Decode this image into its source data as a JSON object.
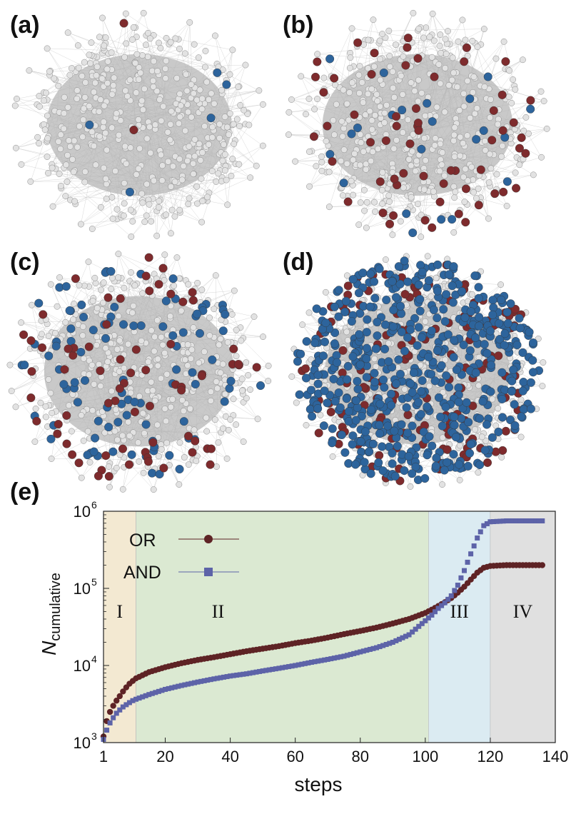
{
  "panels": {
    "a": "(a)",
    "b": "(b)",
    "c": "(c)",
    "d": "(d)",
    "e": "(e)"
  },
  "colors": {
    "node_default": "#e2e2e2",
    "node_red": "#7e2b2d",
    "node_blue": "#2d649c",
    "edge": "#b7b7b7",
    "or_series": "#5e2325",
    "and_series": "#5d63a8",
    "region_I": "#f3e9d2",
    "region_II": "#dbe9d2",
    "region_III": "#dbebf2",
    "region_IV": "#e0e0e0"
  },
  "networks": [
    {
      "id": "a",
      "blue_count": 5,
      "red_count": 2
    },
    {
      "id": "b",
      "blue_count": 22,
      "red_count": 60
    },
    {
      "id": "c",
      "blue_count": 95,
      "red_count": 70
    },
    {
      "id": "d",
      "blue_count": 560,
      "red_count": 150
    }
  ],
  "chart_data": {
    "type": "scatter",
    "xlabel": "steps",
    "ylabel": "N",
    "ylabel_sub": "cumulative",
    "y_scale": "log",
    "xlim": [
      1,
      140
    ],
    "ylim": [
      1000,
      1000000
    ],
    "x_ticks": [
      "1",
      "20",
      "40",
      "60",
      "80",
      "100",
      "120",
      "140"
    ],
    "x_tick_values": [
      1,
      20,
      40,
      60,
      80,
      100,
      120,
      140
    ],
    "y_ticks": [
      {
        "base": "10",
        "exp": "3",
        "value": 1000
      },
      {
        "base": "10",
        "exp": "4",
        "value": 10000
      },
      {
        "base": "10",
        "exp": "5",
        "value": 100000
      },
      {
        "base": "10",
        "exp": "6",
        "value": 1000000
      }
    ],
    "regions": [
      {
        "label": "I",
        "from": 1,
        "to": 11
      },
      {
        "label": "II",
        "from": 11,
        "to": 101
      },
      {
        "label": "III",
        "from": 101,
        "to": 120
      },
      {
        "label": "IV",
        "from": 120,
        "to": 140
      }
    ],
    "legend_position": "top-left",
    "series": [
      {
        "name": "OR",
        "marker": "circle",
        "points": [
          [
            1,
            1200
          ],
          [
            2,
            1900
          ],
          [
            3,
            2500
          ],
          [
            4,
            3000
          ],
          [
            5,
            3500
          ],
          [
            6,
            4000
          ],
          [
            7,
            4600
          ],
          [
            8,
            5200
          ],
          [
            9,
            5800
          ],
          [
            10,
            6300
          ],
          [
            11,
            6800
          ],
          [
            15,
            8200
          ],
          [
            20,
            9500
          ],
          [
            25,
            10700
          ],
          [
            30,
            11800
          ],
          [
            35,
            12800
          ],
          [
            40,
            14000
          ],
          [
            45,
            15300
          ],
          [
            50,
            16500
          ],
          [
            55,
            17800
          ],
          [
            60,
            19500
          ],
          [
            65,
            21000
          ],
          [
            70,
            23000
          ],
          [
            75,
            25500
          ],
          [
            80,
            28000
          ],
          [
            85,
            31000
          ],
          [
            90,
            35000
          ],
          [
            95,
            40000
          ],
          [
            100,
            48000
          ],
          [
            102,
            53000
          ],
          [
            104,
            59000
          ],
          [
            106,
            66000
          ],
          [
            108,
            75000
          ],
          [
            110,
            88000
          ],
          [
            112,
            105000
          ],
          [
            114,
            130000
          ],
          [
            116,
            160000
          ],
          [
            118,
            185000
          ],
          [
            120,
            195000
          ],
          [
            125,
            200000
          ],
          [
            130,
            200000
          ],
          [
            136,
            200000
          ]
        ]
      },
      {
        "name": "AND",
        "marker": "square",
        "points": [
          [
            1,
            1100
          ],
          [
            2,
            1450
          ],
          [
            3,
            1800
          ],
          [
            4,
            2100
          ],
          [
            5,
            2400
          ],
          [
            6,
            2650
          ],
          [
            7,
            2900
          ],
          [
            8,
            3100
          ],
          [
            9,
            3300
          ],
          [
            10,
            3500
          ],
          [
            11,
            3650
          ],
          [
            15,
            4200
          ],
          [
            20,
            4900
          ],
          [
            25,
            5500
          ],
          [
            30,
            6100
          ],
          [
            35,
            6700
          ],
          [
            40,
            7300
          ],
          [
            45,
            7800
          ],
          [
            50,
            8500
          ],
          [
            55,
            9200
          ],
          [
            60,
            10000
          ],
          [
            65,
            11000
          ],
          [
            70,
            12000
          ],
          [
            75,
            13200
          ],
          [
            80,
            15000
          ],
          [
            85,
            17000
          ],
          [
            90,
            20000
          ],
          [
            95,
            25000
          ],
          [
            100,
            38000
          ],
          [
            102,
            45000
          ],
          [
            104,
            55000
          ],
          [
            106,
            65000
          ],
          [
            108,
            80000
          ],
          [
            110,
            110000
          ],
          [
            112,
            170000
          ],
          [
            114,
            280000
          ],
          [
            116,
            450000
          ],
          [
            118,
            650000
          ],
          [
            120,
            730000
          ],
          [
            125,
            750000
          ],
          [
            130,
            750000
          ],
          [
            136,
            750000
          ]
        ]
      }
    ]
  }
}
